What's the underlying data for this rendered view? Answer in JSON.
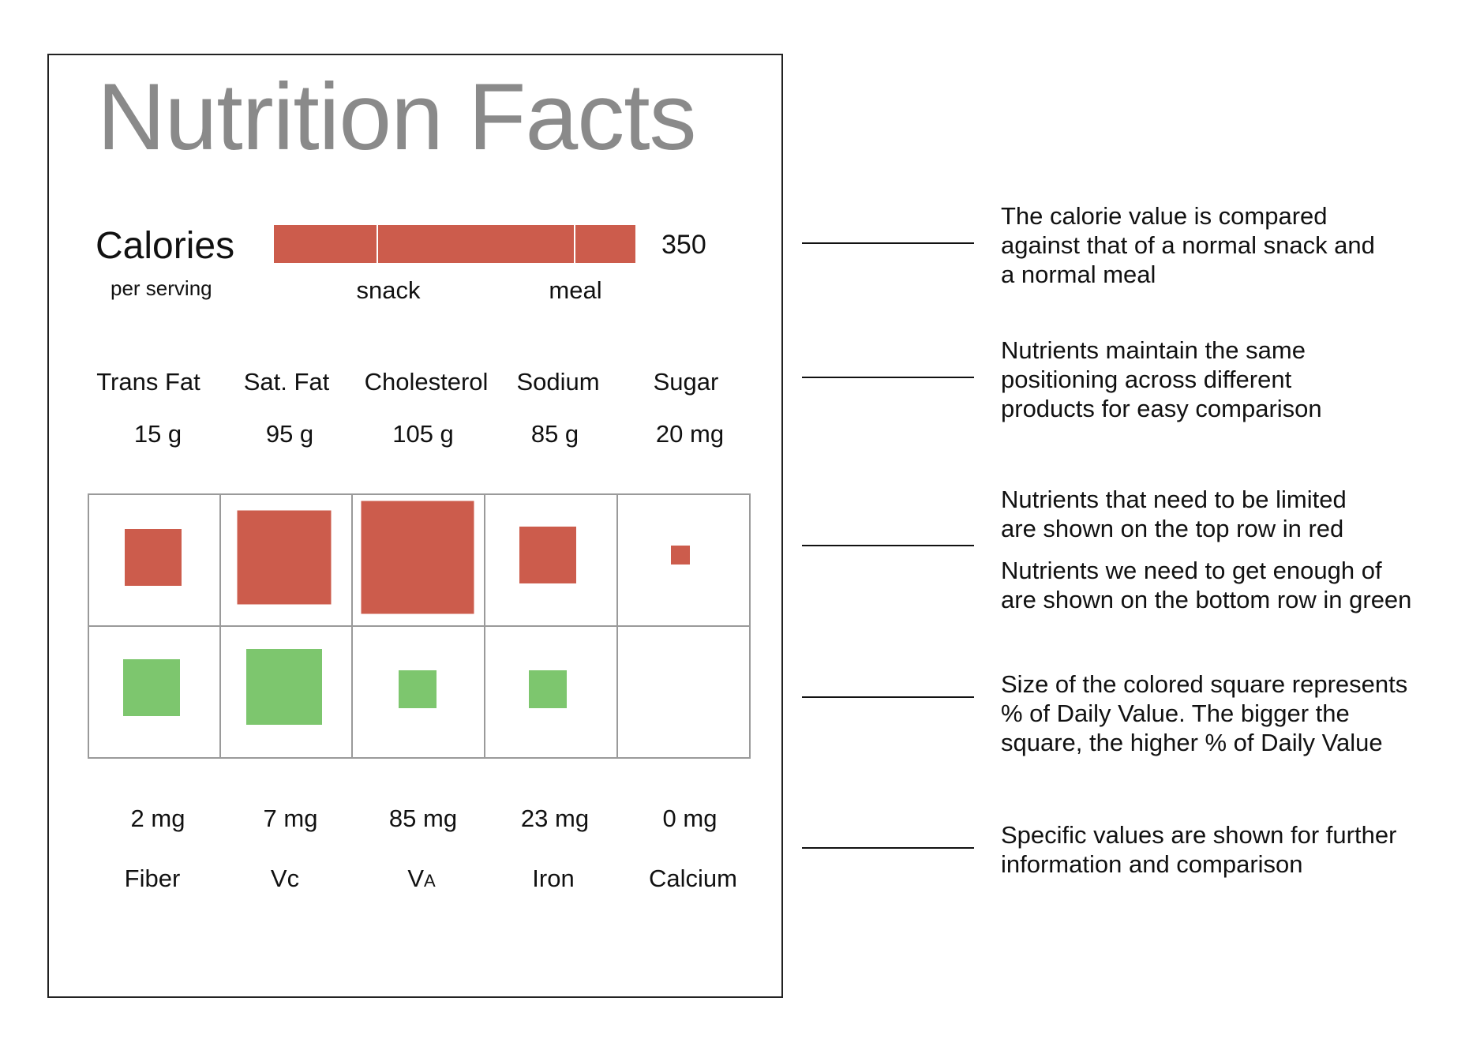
{
  "title": "Nutrition Facts",
  "calories": {
    "label": "Calories",
    "sublabel": "per serving",
    "value": "350",
    "snack_label": "snack",
    "meal_label": "meal",
    "bar_color": "#cc5c4c"
  },
  "limit_nutrients": [
    {
      "name": "Trans Fat",
      "value": "15 g"
    },
    {
      "name": "Sat. Fat",
      "value": "95 g"
    },
    {
      "name": "Cholesterol",
      "value": "105 g"
    },
    {
      "name": "Sodium",
      "value": "85 g"
    },
    {
      "name": "Sugar",
      "value": "20 mg"
    }
  ],
  "enough_nutrients": [
    {
      "name": "Fiber",
      "value": "2 mg"
    },
    {
      "name": "Vc",
      "value": "7 mg"
    },
    {
      "name": "VA",
      "value": "85 mg"
    },
    {
      "name": "Iron",
      "value": "23 mg"
    },
    {
      "name": "Calcium",
      "value": "0 mg"
    }
  ],
  "colors": {
    "limit": "#cc5c4c",
    "enough": "#7dc66e",
    "grid": "#9a9a9a",
    "title": "#8a8a8a"
  },
  "notes": [
    "The calorie value is compared\nagainst that of a normal snack and\na normal meal",
    "Nutrients maintain the same\npositioning across different\nproducts for easy comparison",
    "Nutrients that need to be limited\nare shown on the top row in red",
    "Nutrients we need to get enough of\nare shown on the bottom row in green",
    "Size of the colored square represents\n% of Daily Value. The bigger the\nsquare, the higher % of Daily Value",
    "Specific values are shown for further\ninformation and comparison"
  ]
}
